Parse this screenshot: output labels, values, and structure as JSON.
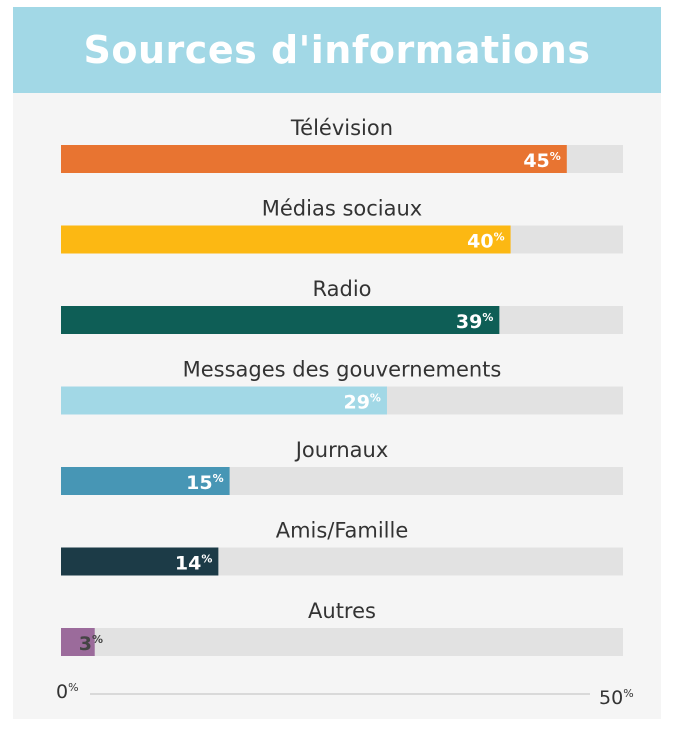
{
  "header": {
    "title": "Sources d'informations"
  },
  "chart_data": {
    "type": "bar",
    "orientation": "horizontal",
    "title": "Sources d'informations",
    "categories": [
      "Télévision",
      "Médias sociaux",
      "Radio",
      "Messages des gouvernements",
      "Journaux",
      "Amis/Famille",
      "Autres"
    ],
    "values": [
      45,
      40,
      39,
      29,
      15,
      14,
      3
    ],
    "colors": [
      "#e87431",
      "#fcb813",
      "#0e5e56",
      "#a2d8e6",
      "#4796b5",
      "#1c3b47",
      "#9b6b9b"
    ],
    "label_colors": [
      "#ffffff",
      "#ffffff",
      "#ffffff",
      "#ffffff",
      "#ffffff",
      "#ffffff",
      "#444444"
    ],
    "track_color": "#e2e2e2",
    "unit": "%",
    "xlim": [
      0,
      50
    ],
    "axis": {
      "min_label": "0",
      "max_label": "50",
      "unit": "%"
    },
    "grid": false,
    "legend": "none"
  }
}
